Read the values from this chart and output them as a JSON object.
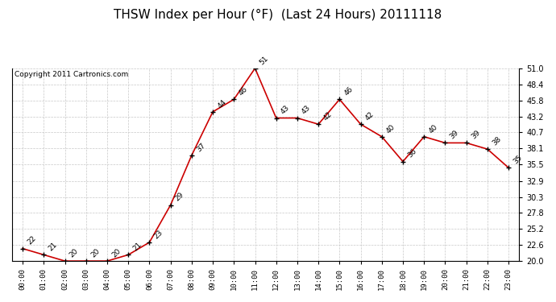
{
  "title": "THSW Index per Hour (°F)  (Last 24 Hours) 20111118",
  "copyright": "Copyright 2011 Cartronics.com",
  "hours": [
    "00:00",
    "01:00",
    "02:00",
    "03:00",
    "04:00",
    "05:00",
    "06:00",
    "07:00",
    "08:00",
    "09:00",
    "10:00",
    "11:00",
    "12:00",
    "13:00",
    "14:00",
    "15:00",
    "16:00",
    "17:00",
    "18:00",
    "19:00",
    "20:00",
    "21:00",
    "22:00",
    "23:00"
  ],
  "values": [
    22,
    21,
    20,
    20,
    20,
    21,
    23,
    29,
    37,
    44,
    46,
    51,
    43,
    43,
    42,
    46,
    42,
    40,
    36,
    40,
    39,
    39,
    38,
    35
  ],
  "line_color": "#cc0000",
  "marker_color": "black",
  "bg_color": "#ffffff",
  "grid_color": "#c8c8c8",
  "ylim": [
    20.0,
    51.0
  ],
  "yticks": [
    20.0,
    22.6,
    25.2,
    27.8,
    30.3,
    32.9,
    35.5,
    38.1,
    40.7,
    43.2,
    45.8,
    48.4,
    51.0
  ],
  "title_fontsize": 11,
  "copyright_fontsize": 6.5,
  "annotation_fontsize": 6.5
}
